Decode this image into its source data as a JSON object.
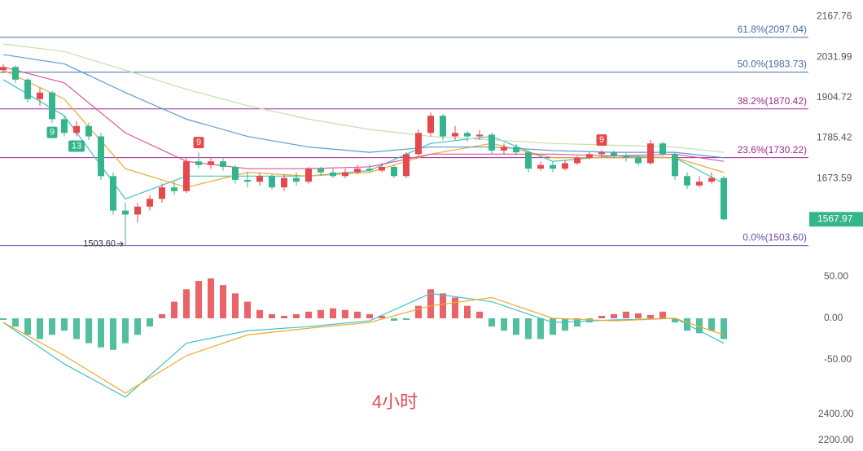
{
  "chart_data": {
    "type": "candlestick",
    "scale": "log",
    "ylim": [
      1449,
      2226
    ],
    "yticks": [
      2167.76,
      2031.99,
      1904.72,
      1785.42,
      1673.59
    ],
    "up_color": "#e5484d",
    "down_color": "#35b58c",
    "open": [
      1990,
      2000,
      1960,
      1900,
      1920,
      1840,
      1800,
      1820,
      1790,
      1680,
      1590,
      1580,
      1600,
      1620,
      1650,
      1640,
      1720,
      1710,
      1720,
      1705,
      1670,
      1665,
      1680,
      1650,
      1675,
      1665,
      1700,
      1690,
      1680,
      1690,
      1700,
      1695,
      1705,
      1680,
      1740,
      1800,
      1850,
      1790,
      1800,
      1790,
      1795,
      1750,
      1760,
      1745,
      1700,
      1710,
      1700,
      1715,
      1730,
      1740,
      1745,
      1735,
      1730,
      1715,
      1770,
      1740,
      1680,
      1655,
      1665,
      1675
    ],
    "high": [
      2010,
      2005,
      1965,
      1935,
      1925,
      1850,
      1835,
      1830,
      1800,
      1690,
      1610,
      1610,
      1630,
      1660,
      1665,
      1730,
      1745,
      1730,
      1728,
      1710,
      1690,
      1690,
      1685,
      1685,
      1690,
      1705,
      1705,
      1700,
      1700,
      1710,
      1712,
      1715,
      1710,
      1745,
      1810,
      1860,
      1855,
      1820,
      1805,
      1808,
      1800,
      1770,
      1768,
      1750,
      1720,
      1718,
      1722,
      1735,
      1745,
      1752,
      1750,
      1742,
      1738,
      1780,
      1775,
      1745,
      1690,
      1680,
      1690,
      1680
    ],
    "low": [
      1980,
      1950,
      1890,
      1880,
      1830,
      1790,
      1790,
      1780,
      1670,
      1580,
      1503.6,
      1560,
      1590,
      1610,
      1630,
      1635,
      1700,
      1700,
      1695,
      1660,
      1650,
      1655,
      1645,
      1640,
      1655,
      1660,
      1680,
      1675,
      1675,
      1685,
      1688,
      1690,
      1675,
      1675,
      1735,
      1790,
      1780,
      1780,
      1775,
      1780,
      1740,
      1740,
      1735,
      1690,
      1695,
      1690,
      1695,
      1710,
      1725,
      1732,
      1728,
      1720,
      1708,
      1710,
      1735,
      1670,
      1645,
      1650,
      1660,
      1565
    ],
    "close": [
      2000,
      1960,
      1900,
      1920,
      1840,
      1800,
      1820,
      1790,
      1680,
      1590,
      1580,
      1600,
      1620,
      1650,
      1640,
      1720,
      1710,
      1720,
      1705,
      1670,
      1665,
      1680,
      1650,
      1675,
      1665,
      1700,
      1690,
      1680,
      1690,
      1700,
      1695,
      1705,
      1680,
      1740,
      1800,
      1850,
      1790,
      1800,
      1790,
      1795,
      1750,
      1760,
      1745,
      1700,
      1710,
      1700,
      1715,
      1730,
      1740,
      1745,
      1735,
      1730,
      1715,
      1770,
      1740,
      1680,
      1655,
      1665,
      1675,
      1567.97
    ],
    "ma_x": [
      0,
      5,
      10,
      15,
      20,
      25,
      30,
      35,
      40,
      45,
      50,
      55,
      59
    ],
    "series": [
      {
        "color": "#3fc1c9",
        "values": [
          1960,
          1850,
          1620,
          1680,
          1680,
          1680,
          1695,
          1770,
          1790,
          1720,
          1735,
          1730,
          1660
        ]
      },
      {
        "color": "#f0a830",
        "values": [
          1990,
          1900,
          1700,
          1650,
          1690,
          1680,
          1690,
          1740,
          1770,
          1730,
          1730,
          1730,
          1690
        ]
      },
      {
        "color": "#e0559a",
        "values": [
          2000,
          1950,
          1800,
          1720,
          1700,
          1700,
          1705,
          1740,
          1740,
          1740,
          1735,
          1740,
          1720
        ]
      },
      {
        "color": "#5b9bd5",
        "values": [
          2040,
          2010,
          1920,
          1840,
          1790,
          1760,
          1745,
          1760,
          1760,
          1750,
          1745,
          1745,
          1730
        ]
      },
      {
        "color": "#c5dfb0",
        "values": [
          2075,
          2050,
          1990,
          1930,
          1880,
          1840,
          1810,
          1790,
          1780,
          1770,
          1765,
          1760,
          1745
        ]
      }
    ],
    "fib_levels": [
      {
        "label": "61.8%(2097.04)",
        "value": 2097.04,
        "color": "#4a6aa0"
      },
      {
        "label": "50.0%(1983.73)",
        "value": 1983.73,
        "color": "#4a6aa0"
      },
      {
        "label": "38.2%(1870.42)",
        "value": 1870.42,
        "color": "#9c2a90"
      },
      {
        "label": "23.6%(1730.22)",
        "value": 1730.22,
        "color": "#9c2a90"
      },
      {
        "label": "0.0%(1503.60)",
        "value": 1503.6,
        "color": "#6a4fa0"
      }
    ],
    "low_label": "1503.60",
    "last_price": 1567.97,
    "annotations": [
      {
        "text": "9",
        "index": 4,
        "color": "#35b58c"
      },
      {
        "text": "13",
        "index": 6,
        "color": "#35b58c"
      },
      {
        "text": "9",
        "index": 16,
        "color": "#e5484d"
      },
      {
        "text": "9",
        "index": 49,
        "color": "#e5484d"
      }
    ],
    "macd": {
      "ylim": [
        -106.9,
        59.8
      ],
      "yticks": [
        {
          "value": 50,
          "label": "50.00"
        },
        {
          "value": 0,
          "label": "0.00"
        },
        {
          "value": -50,
          "label": "-50.00"
        }
      ],
      "histogram": [
        -2,
        -10,
        -20,
        -25,
        -20,
        -15,
        -25,
        -30,
        -35,
        -38,
        -30,
        -20,
        -10,
        5,
        20,
        35,
        45,
        48,
        40,
        30,
        20,
        10,
        5,
        3,
        5,
        8,
        10,
        12,
        10,
        8,
        5,
        3,
        -3,
        -2,
        15,
        35,
        30,
        25,
        15,
        8,
        -10,
        -15,
        -20,
        -25,
        -25,
        -20,
        -15,
        -10,
        -5,
        3,
        5,
        8,
        6,
        4,
        8,
        -5,
        -15,
        -18,
        -15,
        -25
      ],
      "dif": {
        "color": "#3fc1c9",
        "values": [
          -5,
          -55,
          -95,
          -30,
          -15,
          -10,
          -3,
          30,
          20,
          -5,
          -2,
          0,
          -30
        ]
      },
      "dea": {
        "color": "#f0a830",
        "values": [
          -5,
          -45,
          -90,
          -45,
          -20,
          -12,
          -5,
          15,
          25,
          0,
          -3,
          0,
          -20
        ]
      }
    },
    "lower_panel": {
      "ylim": [
        2119,
        2456
      ],
      "yticks": [
        {
          "value": 2400,
          "label": "2400.00"
        },
        {
          "value": 2200,
          "label": "2200.00"
        }
      ]
    },
    "watermark": "4小时"
  }
}
